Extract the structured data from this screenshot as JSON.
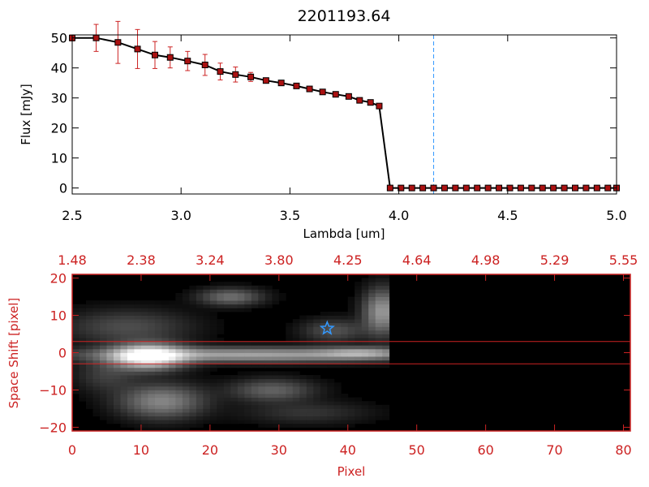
{
  "colors": {
    "frame_top": "#000000",
    "frame_bottom": "#cc2222",
    "error_bar": "#cc2222",
    "marker": "#aa1111",
    "dashed_line": "#3399ff",
    "star": "#3399ff",
    "background_image": "#000000"
  },
  "chart_data": [
    {
      "type": "line",
      "title": "2201193.64",
      "xlabel": "Lambda [um]",
      "ylabel": "Flux [mJy]",
      "xlim": [
        2.5,
        5.0
      ],
      "ylim": [
        -2,
        51
      ],
      "xticks": [
        2.5,
        3.0,
        3.5,
        4.0,
        4.5,
        5.0
      ],
      "xtick_labels": [
        "2.5",
        "3.0",
        "3.5",
        "4.0",
        "4.5",
        "5.0"
      ],
      "yticks": [
        0,
        10,
        20,
        30,
        40,
        50
      ],
      "ytick_labels": [
        "0",
        "10",
        "20",
        "30",
        "40",
        "50"
      ],
      "vline_x": 4.16,
      "series": [
        {
          "x": [
            2.5,
            2.61,
            2.71,
            2.8,
            2.88,
            2.95,
            3.03,
            3.11,
            3.18,
            3.25,
            3.32,
            3.39,
            3.46,
            3.53,
            3.59,
            3.65,
            3.71,
            3.77,
            3.82,
            3.87,
            3.91,
            3.96,
            4.01,
            4.06,
            4.11,
            4.16,
            4.21,
            4.26,
            4.31,
            4.36,
            4.41,
            4.46,
            4.51,
            4.56,
            4.61,
            4.66,
            4.71,
            4.76,
            4.81,
            4.86,
            4.91,
            4.96,
            5.0
          ],
          "y": [
            50,
            50,
            48.5,
            46.3,
            44.3,
            43.5,
            42.3,
            41,
            38.8,
            37.8,
            37,
            35.8,
            35,
            34,
            33,
            32,
            31.2,
            30.5,
            29.2,
            28.5,
            27.3,
            0,
            0,
            0,
            0,
            0,
            0,
            0,
            0,
            0,
            0,
            0,
            0,
            0,
            0,
            0,
            0,
            0,
            0,
            0,
            0,
            0,
            0
          ],
          "err": [
            1,
            4.5,
            7,
            6.5,
            4.5,
            3.5,
            3.2,
            3.5,
            2.8,
            2.5,
            1.5,
            0.8,
            0.7,
            0.6,
            0.5,
            0.5,
            0.5,
            0.5,
            0.5,
            0.5,
            0.5,
            0,
            0,
            0,
            0,
            0,
            0,
            0,
            0,
            0,
            0,
            0,
            0,
            0,
            0,
            0,
            0,
            0,
            0,
            0,
            0,
            0,
            0
          ]
        }
      ]
    },
    {
      "type": "heatmap",
      "xlabel": "Pixel",
      "ylabel": "Space Shift [pixel]",
      "xlim": [
        0,
        81
      ],
      "ylim": [
        -21,
        21
      ],
      "xticks": [
        0,
        10,
        20,
        30,
        40,
        50,
        60,
        70,
        80
      ],
      "xtick_labels": [
        "0",
        "10",
        "20",
        "30",
        "40",
        "50",
        "60",
        "70",
        "80"
      ],
      "yticks": [
        -20,
        -10,
        0,
        10,
        20
      ],
      "ytick_labels": [
        "−20",
        "−10",
        "0",
        "10",
        "20"
      ],
      "top_xticks": [
        0,
        10,
        20,
        30,
        40,
        50,
        60,
        70,
        80
      ],
      "top_xtick_labels": [
        "1.48",
        "2.38",
        "3.24",
        "3.80",
        "4.25",
        "4.64",
        "4.98",
        "5.29",
        "5.55"
      ],
      "hlines": [
        3,
        -3
      ],
      "data_extent_x": [
        0,
        46
      ],
      "star": {
        "x": 37,
        "y": 6.5
      },
      "blobs": [
        {
          "x": 11,
          "y": -1,
          "sx": 3.5,
          "sy": 2.2,
          "a": 1.0
        },
        {
          "x": 26,
          "y": -0.5,
          "sx": 16,
          "sy": 1.3,
          "a": 0.55
        },
        {
          "x": 42,
          "y": 0,
          "sx": 4,
          "sy": 1.0,
          "a": 0.35
        },
        {
          "x": 13,
          "y": -13,
          "sx": 4,
          "sy": 3,
          "a": 0.42
        },
        {
          "x": 29,
          "y": -10,
          "sx": 4,
          "sy": 2,
          "a": 0.28
        },
        {
          "x": 23,
          "y": 15,
          "sx": 3,
          "sy": 1.5,
          "a": 0.33
        },
        {
          "x": 45,
          "y": 11,
          "sx": 1.8,
          "sy": 4,
          "a": 0.5
        },
        {
          "x": 8,
          "y": 7,
          "sx": 6,
          "sy": 3,
          "a": 0.2
        },
        {
          "x": 5,
          "y": -6,
          "sx": 3,
          "sy": 3,
          "a": 0.15
        },
        {
          "x": 38,
          "y": 6,
          "sx": 3,
          "sy": 2,
          "a": 0.22
        },
        {
          "x": 34,
          "y": -16,
          "sx": 6,
          "sy": 2,
          "a": 0.12
        }
      ]
    }
  ]
}
